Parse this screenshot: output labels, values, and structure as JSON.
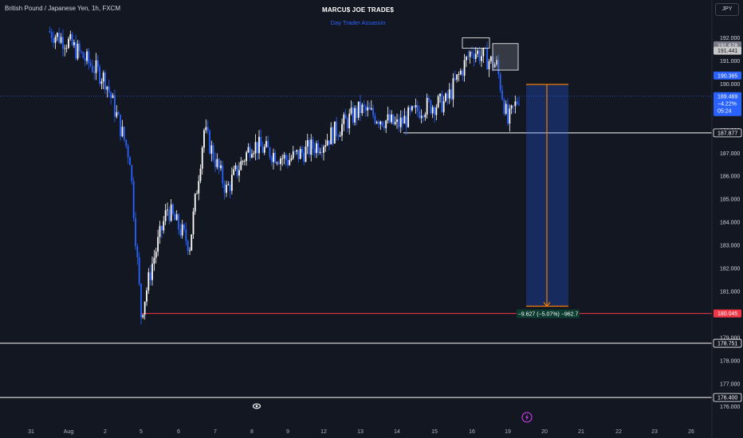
{
  "header": {
    "symbol_title": "British Pound / Japanese Yen, 1h, FXCM",
    "brand_name": "MARCU$ JOE TRADE$",
    "brand_sub": "Day Trader Assassin",
    "currency": "JPY"
  },
  "chart_data": {
    "type": "candlestick",
    "y_axis": {
      "ticks": [
        "192.000",
        "191.000",
        "190.000",
        "189.000",
        "188.000",
        "187.000",
        "186.000",
        "185.000",
        "184.000",
        "183.000",
        "182.000",
        "181.000",
        "180.000",
        "179.000",
        "178.000",
        "177.000",
        "176.000"
      ],
      "ylim": [
        175.8,
        192.3
      ]
    },
    "x_axis": {
      "ticks": [
        "31",
        "Aug",
        "2",
        "5",
        "6",
        "7",
        "8",
        "9",
        "12",
        "13",
        "14",
        "15",
        "16",
        "19",
        "20",
        "21",
        "22",
        "23",
        "26"
      ]
    },
    "price_path": [
      [
        "31",
        192.3
      ],
      [
        "Aug",
        191.8
      ],
      [
        "2",
        190.2
      ],
      [
        "5",
        186.8
      ],
      [
        "5",
        180.0
      ],
      [
        "5",
        182.2
      ],
      [
        "6",
        184.6
      ],
      [
        "6",
        183.0
      ],
      [
        "7",
        188.0
      ],
      [
        "7",
        185.4
      ],
      [
        "8",
        187.4
      ],
      [
        "9",
        186.7
      ],
      [
        "12",
        187.5
      ],
      [
        "13",
        188.9
      ],
      [
        "14",
        188.2
      ],
      [
        "15",
        189.0
      ],
      [
        "15",
        189.2
      ],
      [
        "16",
        191.5
      ],
      [
        "19",
        190.8
      ],
      [
        "19",
        188.3
      ],
      [
        "19",
        189.469
      ]
    ],
    "colors": {
      "up": "#ffffff",
      "down": "#2962ff",
      "accent": "#f57c00",
      "support": "#f23645"
    },
    "horizontal_levels": [
      {
        "value": 187.877,
        "label": "187.877",
        "color": "#ffffff"
      },
      {
        "value": 180.045,
        "label": "180.045",
        "color": "#f23645"
      },
      {
        "value": 178.751,
        "label": "178.751",
        "color": "#ffffff"
      },
      {
        "value": 176.4,
        "label": "176.400",
        "color": "#ffffff"
      }
    ],
    "price_labels": [
      {
        "value": 191.678,
        "label": "191.678",
        "bg": "#787b86"
      },
      {
        "value": 191.441,
        "label": "191.441",
        "bg": "#c8c8c8"
      },
      {
        "value": 190.365,
        "label": "190.365",
        "bg": "#2962ff"
      }
    ],
    "current_price": {
      "price": "189.469",
      "change": "−4.22%",
      "countdown": "05:24",
      "value": 189.469
    },
    "measure": {
      "label": "−9.627 (−5.07%) −962.7",
      "from": 189.98,
      "to": 180.36
    },
    "grid": false,
    "legend": "none"
  }
}
